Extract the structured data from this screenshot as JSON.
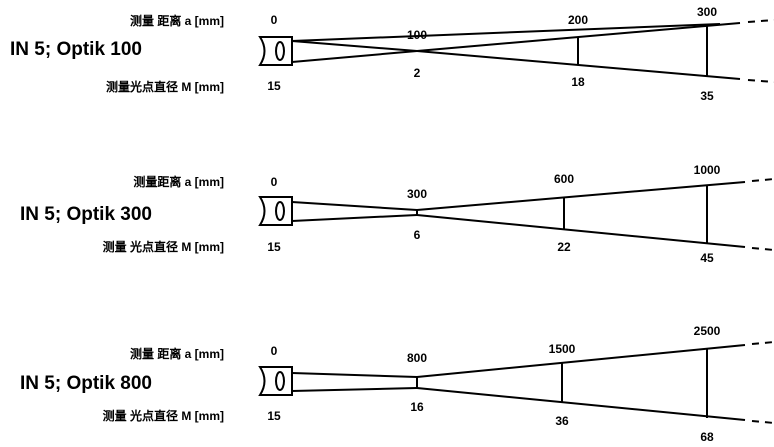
{
  "diagrams": [
    {
      "title": "IN 5; Optik 100",
      "distance_label": "测量 距离 a [mm]",
      "spot_label": "测量光点直径 M [mm]",
      "distances": [
        "0",
        "100",
        "200",
        "300"
      ],
      "spots": [
        "15",
        "2",
        "18",
        "35"
      ]
    },
    {
      "title": "IN 5; Optik 300",
      "distance_label": "测量距离 a [mm]",
      "spot_label": "测量 光点直径 M [mm]",
      "distances": [
        "0",
        "300",
        "600",
        "1000"
      ],
      "spots": [
        "15",
        "6",
        "22",
        "45"
      ]
    },
    {
      "title": "IN 5; Optik 800",
      "distance_label": "测量 距离 a [mm]",
      "spot_label": "测量 光点直径 M [mm]",
      "distances": [
        "0",
        "800",
        "1500",
        "2500"
      ],
      "spots": [
        "15",
        "16",
        "36",
        "68"
      ]
    }
  ]
}
